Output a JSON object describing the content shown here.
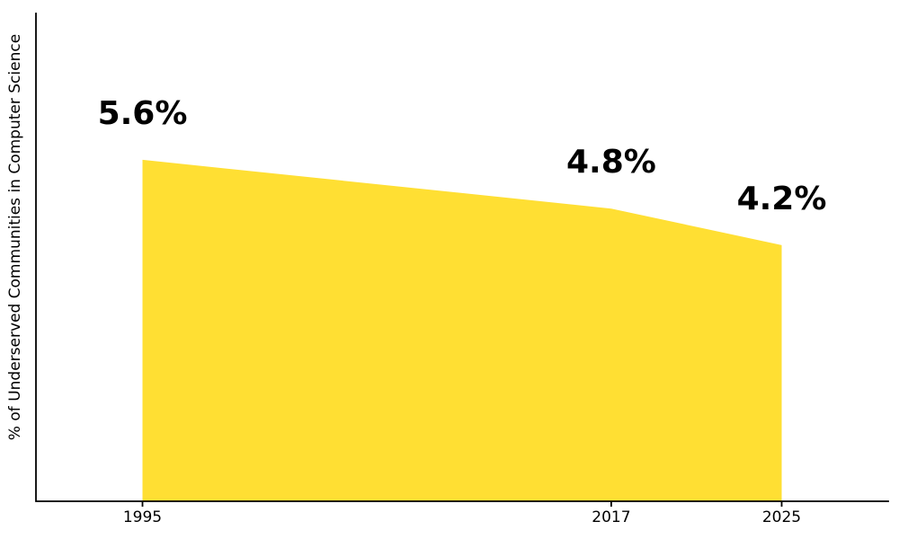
{
  "chart_data": {
    "type": "area",
    "x": [
      1995,
      2017,
      2025
    ],
    "values": [
      5.6,
      4.8,
      4.2
    ],
    "point_labels": [
      "5.6%",
      "4.8%",
      "4.2%"
    ],
    "x_tick_labels": [
      "1995",
      "2017",
      "2025"
    ],
    "title": "",
    "xlabel": "",
    "ylabel": "% of Underserved Communities in Computer Science",
    "xlim": [
      1990,
      2030
    ],
    "ylim": [
      0,
      8
    ],
    "grid": false,
    "legend": null,
    "fill_color": "#FFDF33",
    "axis_color": "#000000",
    "text_color": "#000000"
  }
}
